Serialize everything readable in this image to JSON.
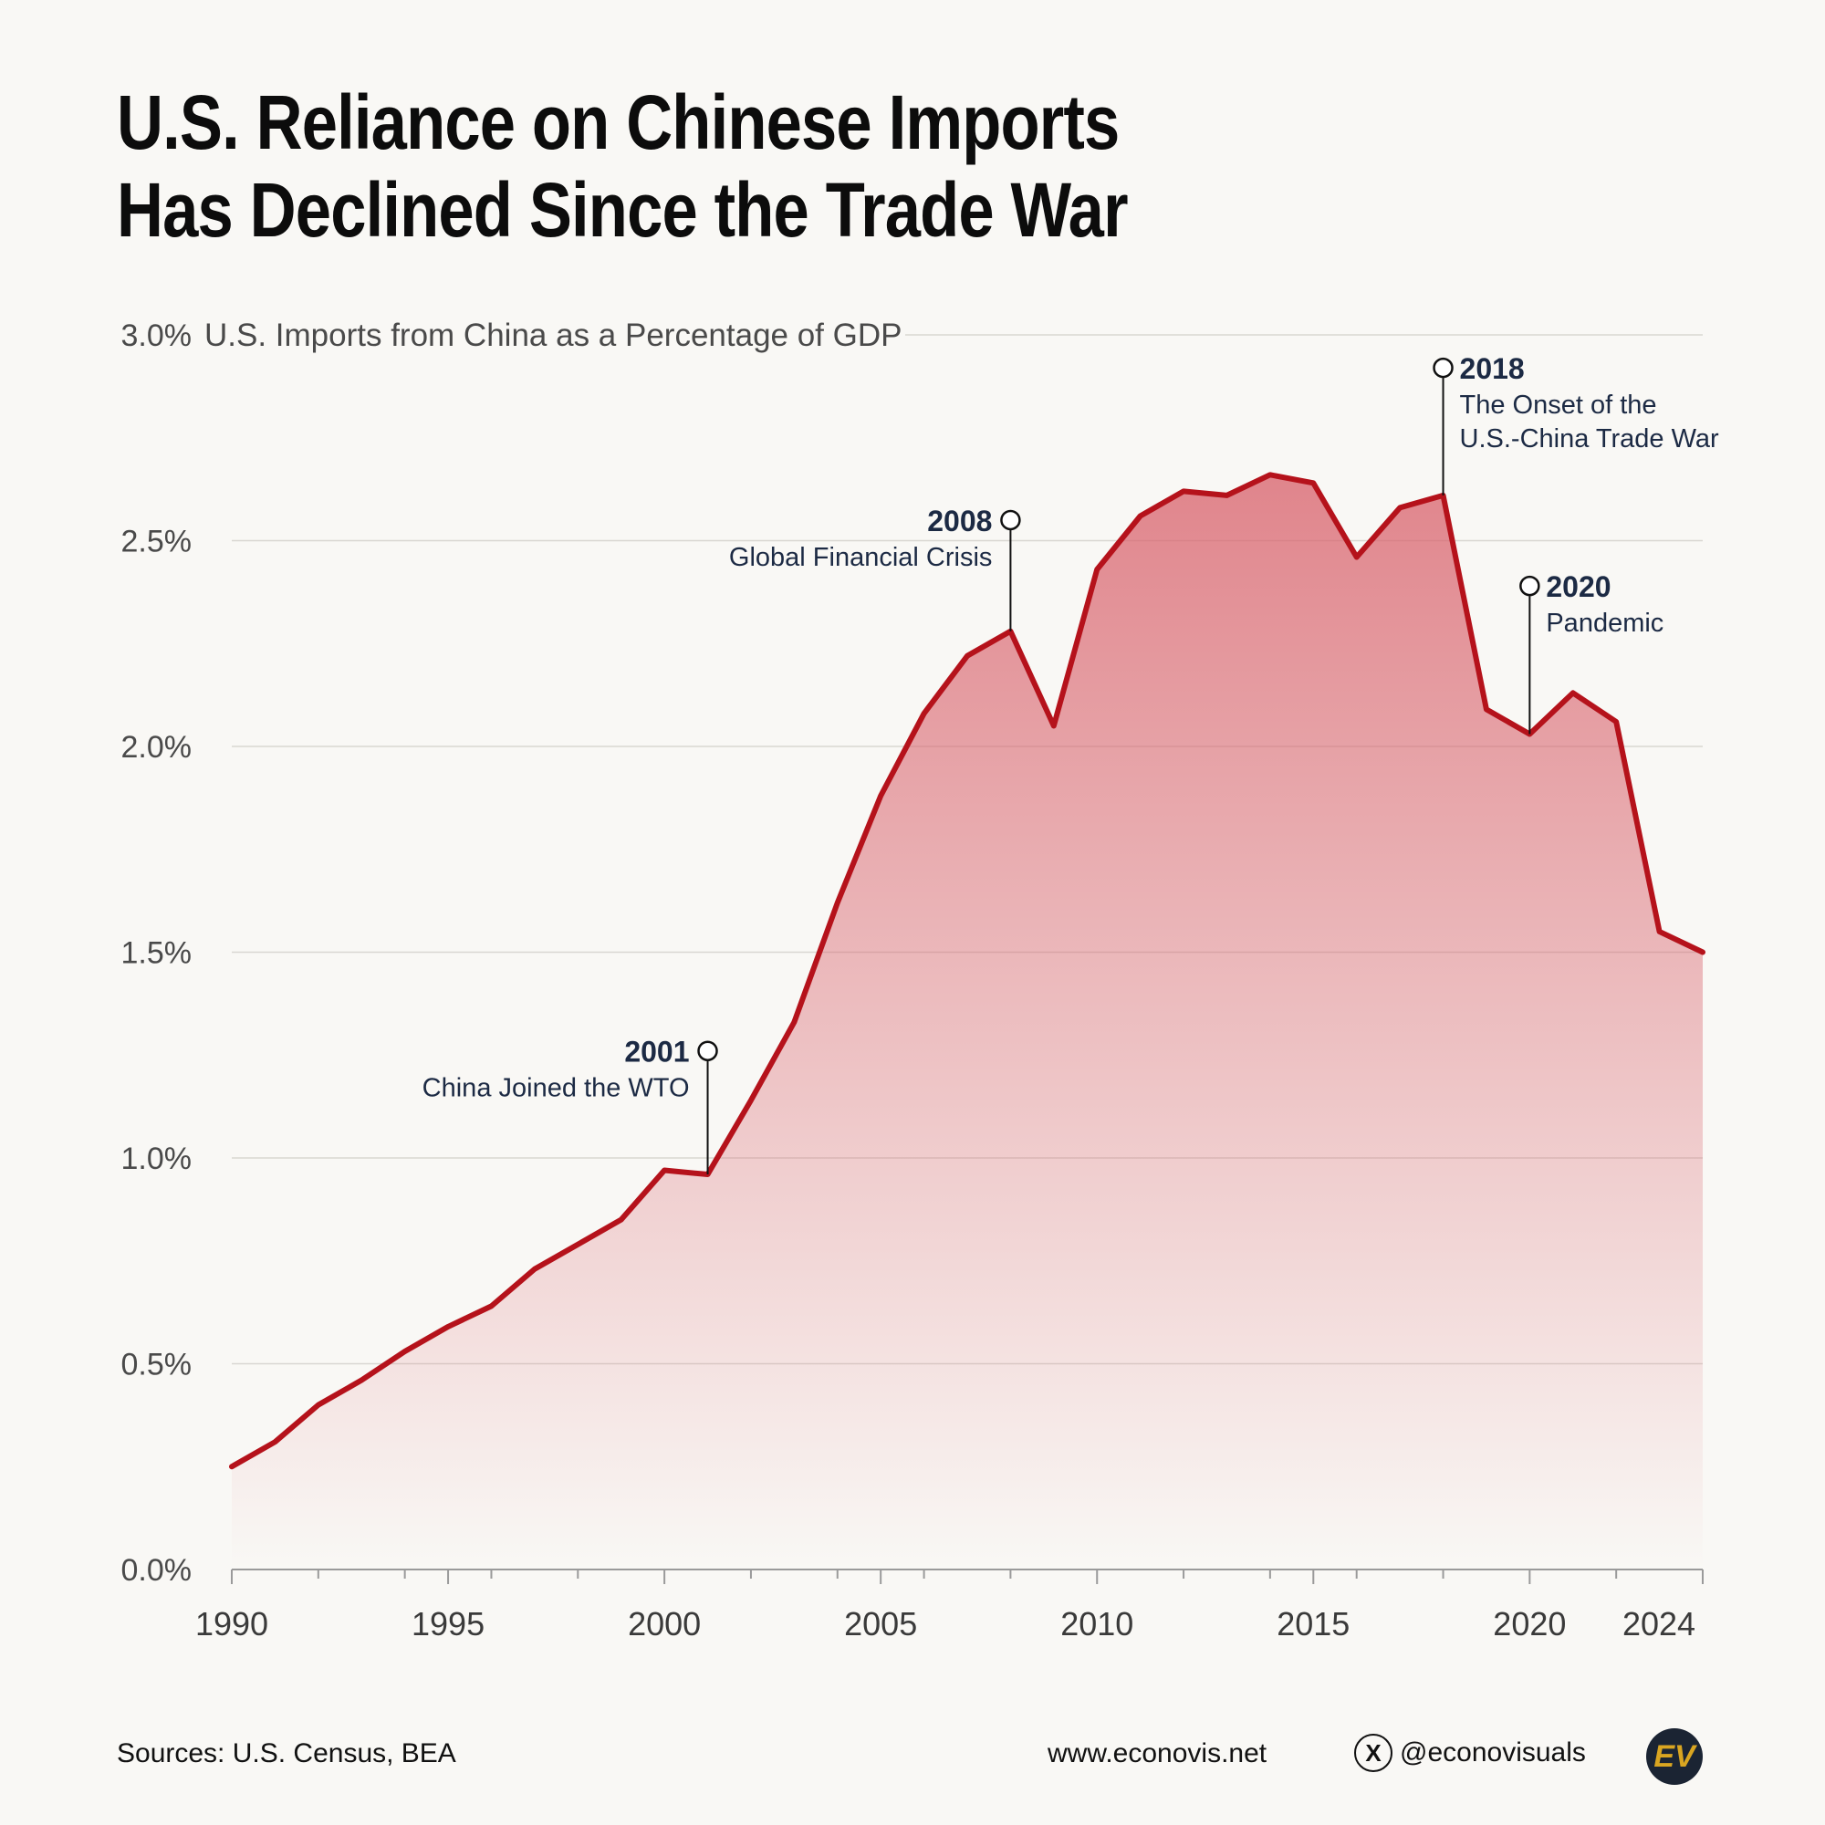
{
  "title": {
    "line1": "U.S. Reliance on Chinese Imports",
    "line2": "Has Declined Since the Trade War"
  },
  "chart_data": {
    "type": "area",
    "subtitle": "U.S. Imports from China as a Percentage of GDP",
    "x": [
      1990,
      1991,
      1992,
      1993,
      1994,
      1995,
      1996,
      1997,
      1998,
      1999,
      2000,
      2001,
      2002,
      2003,
      2004,
      2005,
      2006,
      2007,
      2008,
      2009,
      2010,
      2011,
      2012,
      2013,
      2014,
      2015,
      2016,
      2017,
      2018,
      2019,
      2020,
      2021,
      2022,
      2023,
      2024
    ],
    "values": [
      0.25,
      0.31,
      0.4,
      0.46,
      0.53,
      0.59,
      0.64,
      0.73,
      0.79,
      0.85,
      0.97,
      0.96,
      1.14,
      1.33,
      1.62,
      1.88,
      2.08,
      2.22,
      2.28,
      2.05,
      2.43,
      2.56,
      2.62,
      2.61,
      2.66,
      2.64,
      2.46,
      2.58,
      2.61,
      2.09,
      2.03,
      2.13,
      2.06,
      1.55,
      1.5
    ],
    "ylim": [
      0,
      3.0
    ],
    "xlim": [
      1990,
      2024
    ],
    "y_ticks": [
      0.0,
      0.5,
      1.0,
      1.5,
      2.0,
      2.5,
      3.0
    ],
    "y_tick_labels": [
      "0.0%",
      "0.5%",
      "1.0%",
      "1.5%",
      "2.0%",
      "2.5%",
      "3.0%"
    ],
    "x_ticks": [
      1990,
      1995,
      2000,
      2005,
      2010,
      2015,
      2020,
      2024
    ],
    "x_tick_labels": [
      "1990",
      "1995",
      "2000",
      "2005",
      "2010",
      "2015",
      "2020",
      "2024"
    ],
    "grid": true,
    "line_color": "#b5121b",
    "fill_color": "#d9646e",
    "annotations": [
      {
        "year": 2001,
        "label_year": "2001",
        "text": [
          "China Joined the WTO"
        ],
        "marker_value": 1.26,
        "side": "left"
      },
      {
        "year": 2008,
        "label_year": "2008",
        "text": [
          "Global Financial Crisis"
        ],
        "marker_value": 2.55,
        "side": "left"
      },
      {
        "year": 2018,
        "label_year": "2018",
        "text": [
          "The Onset of the",
          "U.S.-China Trade War"
        ],
        "marker_value": 2.92,
        "side": "right"
      },
      {
        "year": 2020,
        "label_year": "2020",
        "text": [
          "Pandemic"
        ],
        "marker_value": 2.39,
        "side": "right"
      }
    ]
  },
  "footer": {
    "sources": "Sources: U.S. Census, BEA",
    "website": "www.econovis.net",
    "handle": "@econovisuals",
    "x_icon_glyph": "X",
    "logo_text": "EV"
  }
}
